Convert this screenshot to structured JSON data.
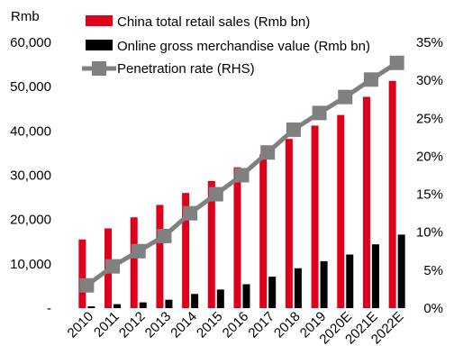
{
  "chart_data": {
    "type": "bar",
    "categories": [
      "2010",
      "2011",
      "2012",
      "2013",
      "2014",
      "2015",
      "2016",
      "2017",
      "2018",
      "2019",
      "2020E",
      "2021E",
      "2022E"
    ],
    "series": [
      {
        "name": "China total retail sales (Rmb bn)",
        "kind": "bar",
        "axis": "left",
        "color": "#e0001b",
        "values": [
          15500,
          18000,
          20500,
          23300,
          26000,
          28700,
          31800,
          34700,
          38200,
          41200,
          43600,
          47700,
          51300
        ]
      },
      {
        "name": "Online gross merchandise value (Rmb bn)",
        "kind": "bar",
        "axis": "left",
        "color": "#000000",
        "values": [
          400,
          900,
          1300,
          1900,
          3200,
          4200,
          5400,
          7100,
          9000,
          10600,
          12100,
          14400,
          16600
        ]
      },
      {
        "name": "Penetration rate (RHS)",
        "kind": "line",
        "axis": "right",
        "color": "#808080",
        "values": [
          3.0,
          5.5,
          7.5,
          9.5,
          12.5,
          15.0,
          17.5,
          20.5,
          23.5,
          25.7,
          27.8,
          30.1,
          32.3
        ]
      }
    ],
    "ylabel": "Rmb",
    "yticks_left": [
      "-",
      "10,000",
      "20,000",
      "30,000",
      "40,000",
      "50,000",
      "60,000"
    ],
    "yticks_right": [
      "0%",
      "5%",
      "10%",
      "15%",
      "20%",
      "25%",
      "30%",
      "35%"
    ],
    "ylim_left": [
      0,
      60000
    ],
    "ylim_right": [
      0,
      35
    ],
    "legend_position": "top-left",
    "grid": false
  }
}
